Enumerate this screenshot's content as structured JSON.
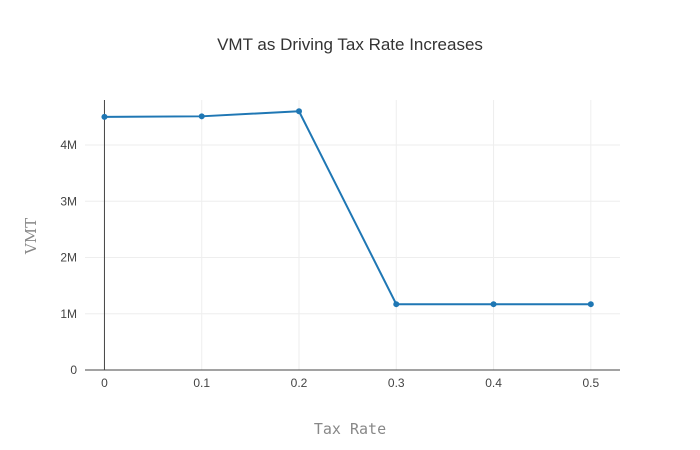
{
  "chart_data": {
    "type": "line",
    "title": "VMT as Driving Tax Rate Increases",
    "xlabel": "Tax Rate",
    "ylabel": "VMT",
    "x": [
      0,
      0.1,
      0.2,
      0.3,
      0.4,
      0.5
    ],
    "series": [
      {
        "values": [
          4500000,
          4510000,
          4600000,
          1170000,
          1170000,
          1170000
        ]
      }
    ],
    "xlim": [
      -0.02,
      0.53
    ],
    "ylim": [
      0,
      4800000
    ],
    "x_ticks": [
      0,
      0.1,
      0.2,
      0.3,
      0.4,
      0.5
    ],
    "x_tick_labels": [
      "0",
      "0.1",
      "0.2",
      "0.3",
      "0.4",
      "0.5"
    ],
    "y_ticks": [
      0,
      1000000,
      2000000,
      3000000,
      4000000
    ],
    "y_tick_labels": [
      "0",
      "1M",
      "2M",
      "3M",
      "4M"
    ],
    "grid": true,
    "markers": true,
    "line_color": "#1f77b4",
    "grid_color": "#eeeeee",
    "axis_color": "#444444"
  }
}
